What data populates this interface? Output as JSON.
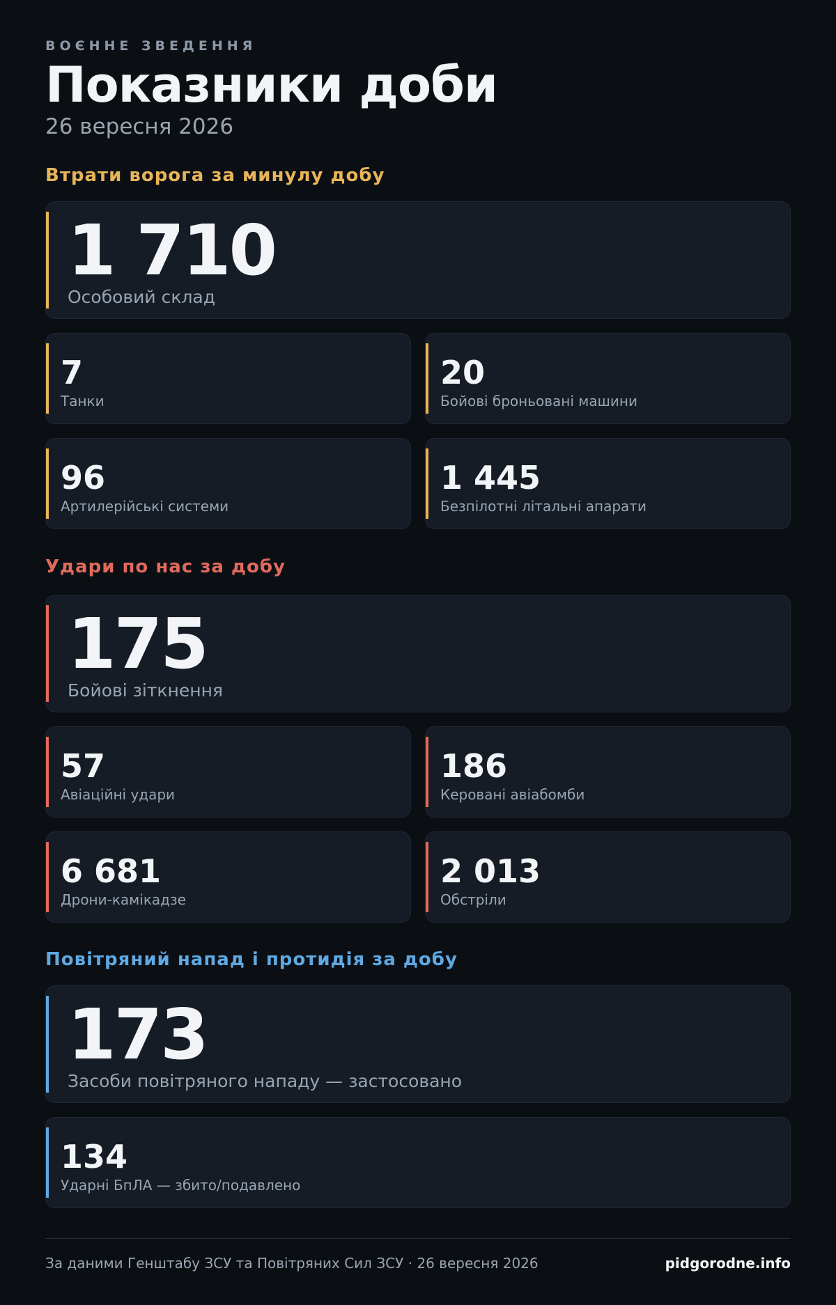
{
  "header": {
    "kicker": "ВОЄННЕ ЗВЕДЕННЯ",
    "title": "Показники доби",
    "date": "26 вересня 2026"
  },
  "sections": [
    {
      "title": "Втрати ворога за минулу добу",
      "main": {
        "value": "1 710",
        "label": "Особовий склад"
      },
      "cards": [
        {
          "value": "7",
          "label": "Танки"
        },
        {
          "value": "20",
          "label": "Бойові броньовані машини"
        },
        {
          "value": "96",
          "label": "Артилерійські системи"
        },
        {
          "value": "1 445",
          "label": "Безпілотні літальні апарати"
        }
      ]
    },
    {
      "title": "Удари по нас за добу",
      "main": {
        "value": "175",
        "label": "Бойові зіткнення"
      },
      "cards": [
        {
          "value": "57",
          "label": "Авіаційні удари"
        },
        {
          "value": "186",
          "label": "Керовані авіабомби"
        },
        {
          "value": "6 681",
          "label": "Дрони-камікадзе"
        },
        {
          "value": "2 013",
          "label": "Обстріли"
        }
      ]
    },
    {
      "title": "Повітряний напад і протидія за добу",
      "main": {
        "value": "173",
        "label": "Засоби повітряного нападу — застосовано"
      },
      "cards": [
        {
          "value": "134",
          "label": "Ударні БпЛА — збито/подавлено"
        }
      ]
    }
  ],
  "footer": {
    "source": "За даними Генштабу ЗСУ та Повітряних Сил ЗСУ · 26 вересня 2026",
    "site": "pidgorodne.info"
  }
}
